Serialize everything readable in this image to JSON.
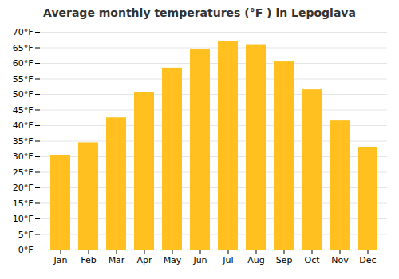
{
  "chart_data": {
    "type": "bar",
    "title": "Average monthly temperatures (°F ) in Lepoglava",
    "categories": [
      "Jan",
      "Feb",
      "Mar",
      "Apr",
      "May",
      "Jun",
      "Jul",
      "Aug",
      "Sep",
      "Oct",
      "Nov",
      "Dec"
    ],
    "values": [
      30.5,
      34.5,
      42.5,
      50.5,
      58.5,
      64.5,
      67.0,
      66.0,
      60.5,
      51.5,
      41.5,
      33.0
    ],
    "color": "#FFC020",
    "ylim": [
      0,
      70
    ],
    "yticks": [
      {
        "value": 0,
        "label": "0°F"
      },
      {
        "value": 5,
        "label": "5°F"
      },
      {
        "value": 10,
        "label": "10°F"
      },
      {
        "value": 15,
        "label": "15°F"
      },
      {
        "value": 20,
        "label": "20°F"
      },
      {
        "value": 25,
        "label": "25°F"
      },
      {
        "value": 30,
        "label": "30°F"
      },
      {
        "value": 35,
        "label": "35°F"
      },
      {
        "value": 40,
        "label": "40°F"
      },
      {
        "value": 45,
        "label": "45°F"
      },
      {
        "value": 50,
        "label": "50°F"
      },
      {
        "value": 55,
        "label": "55°F"
      },
      {
        "value": 60,
        "label": "60°F"
      },
      {
        "value": 65,
        "label": "65°F"
      },
      {
        "value": 70,
        "label": "70°F"
      }
    ],
    "grid": true
  }
}
